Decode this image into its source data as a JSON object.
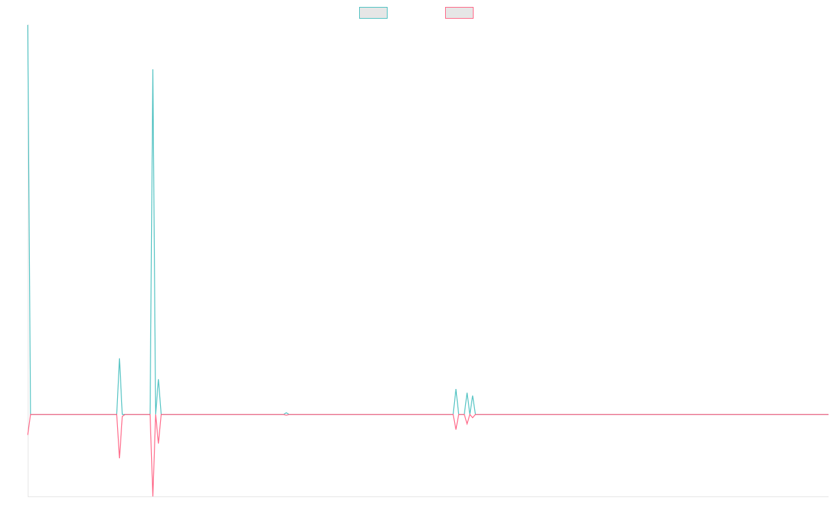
{
  "chart_data": {
    "type": "line",
    "title": "",
    "xlabel": "",
    "ylabel": "",
    "x": [
      0,
      1,
      2,
      3,
      4,
      5,
      6,
      7,
      8,
      9,
      10,
      11,
      12,
      13,
      14,
      15,
      16,
      17,
      18,
      19,
      20,
      21,
      22,
      23,
      24,
      25,
      26,
      27,
      28,
      29,
      30,
      31,
      32,
      33,
      34,
      35,
      36,
      37,
      38,
      39,
      40,
      41,
      42,
      43,
      44,
      45,
      46,
      47,
      48,
      49,
      50,
      51,
      52,
      53,
      54,
      55,
      56,
      57,
      58,
      59,
      60,
      61,
      62,
      63,
      64,
      65,
      66,
      67,
      68,
      69,
      70,
      71,
      72,
      73,
      74,
      75,
      76,
      77,
      78,
      79,
      80,
      81,
      82,
      83,
      84,
      85,
      86,
      87,
      88,
      89,
      90,
      91,
      92,
      93,
      94,
      95,
      96,
      97,
      98,
      99,
      100,
      101,
      102,
      103,
      104,
      105,
      106,
      107,
      108,
      109,
      110,
      111,
      112,
      113,
      114,
      115,
      116,
      117,
      118,
      119,
      120,
      121,
      122,
      123,
      124,
      125,
      126,
      127,
      128,
      129,
      130,
      131,
      132,
      133,
      134,
      135,
      136,
      137,
      138,
      139,
      140,
      141,
      142,
      143,
      144,
      145,
      146,
      147,
      148,
      149,
      150,
      151,
      152,
      153,
      154,
      155,
      156,
      157,
      158,
      159,
      160,
      161,
      162,
      163,
      164,
      165,
      166,
      167,
      168,
      169,
      170,
      171,
      172,
      173,
      174,
      175,
      176,
      177,
      178,
      179,
      180,
      181,
      182,
      183,
      184,
      185,
      186,
      187,
      188,
      189,
      190,
      191,
      192,
      193,
      194,
      195,
      196,
      197,
      198,
      199,
      200,
      201,
      202,
      203,
      204,
      205,
      206,
      207,
      208,
      209,
      210,
      211,
      212,
      213,
      214,
      215,
      216,
      217,
      218,
      219,
      220,
      221,
      222,
      223,
      224,
      225,
      226,
      227,
      228,
      229,
      230,
      231,
      232,
      233,
      234,
      235,
      236,
      237,
      238,
      239,
      240,
      241,
      242,
      243,
      244,
      245,
      246,
      247,
      248,
      249,
      250,
      251,
      252,
      253,
      254,
      255,
      256,
      257,
      258,
      259,
      260,
      261,
      262,
      263,
      264,
      265,
      266,
      267,
      268,
      269,
      270,
      271,
      272,
      273,
      274,
      275,
      276,
      277,
      278,
      279,
      280,
      281,
      282,
      283,
      284,
      285,
      286,
      287,
      288
    ],
    "ylim": [
      -200,
      950
    ],
    "series": [
      {
        "name": "",
        "color": "#4bc0c0",
        "points": [
          [
            0,
            950
          ],
          [
            1,
            0
          ],
          [
            32,
            0
          ],
          [
            33,
            137
          ],
          [
            34,
            0
          ],
          [
            35,
            0
          ],
          [
            44,
            0
          ],
          [
            45,
            842
          ],
          [
            46,
            0
          ],
          [
            47,
            86
          ],
          [
            48,
            0
          ],
          [
            92,
            0
          ],
          [
            93,
            4
          ],
          [
            94,
            0
          ],
          [
            153,
            0
          ],
          [
            154,
            62
          ],
          [
            155,
            0
          ],
          [
            157,
            0
          ],
          [
            158,
            53
          ],
          [
            159,
            0
          ],
          [
            160,
            46
          ],
          [
            161,
            0
          ],
          [
            288,
            0
          ]
        ]
      },
      {
        "name": "",
        "color": "#ff6384",
        "points": [
          [
            0,
            -50
          ],
          [
            1,
            0
          ],
          [
            32,
            0
          ],
          [
            33,
            -107
          ],
          [
            34,
            -5
          ],
          [
            35,
            0
          ],
          [
            44,
            0
          ],
          [
            45,
            -200
          ],
          [
            46,
            0
          ],
          [
            47,
            -71
          ],
          [
            48,
            0
          ],
          [
            92,
            0
          ],
          [
            93,
            -2
          ],
          [
            94,
            0
          ],
          [
            153,
            0
          ],
          [
            154,
            -37
          ],
          [
            155,
            0
          ],
          [
            157,
            0
          ],
          [
            158,
            -23
          ],
          [
            159,
            0
          ],
          [
            160,
            -8
          ],
          [
            161,
            0
          ],
          [
            288,
            0
          ]
        ]
      }
    ],
    "legend_position": "top-center",
    "grid": false
  }
}
